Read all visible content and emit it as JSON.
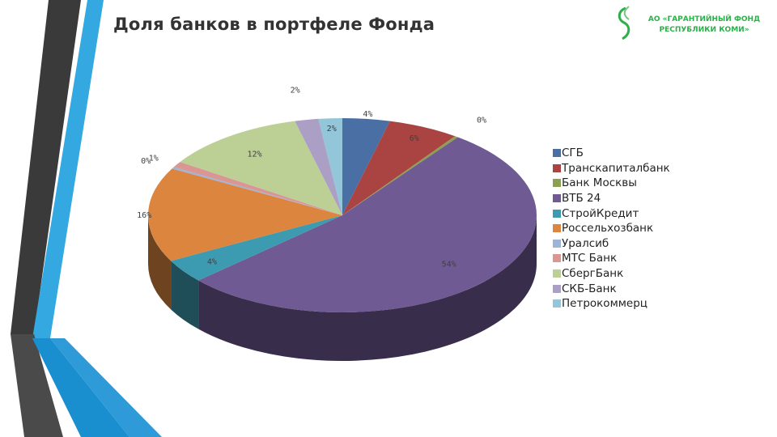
{
  "slide": {
    "title": "Доля банков в портфеле Фонда",
    "logo": {
      "line1": "АО «ГАРАНТИЙНЫЙ ФОНД",
      "line2": "РЕСПУБЛИКИ КОМИ»",
      "icon": "stylized-s-leaf-icon",
      "color": "#2bb04a"
    }
  },
  "chart_data": {
    "type": "pie",
    "title": "",
    "style": "3d",
    "legend_position": "right",
    "categories": [
      "СГБ",
      "Транскапиталбанк",
      "Банк Москвы",
      "ВТБ 24",
      "СтройКредит",
      "Россельхозбанк",
      "Уралсиб",
      "МТС Банк",
      "СбергБанк",
      "СКБ-Банк",
      "Петрокоммерц"
    ],
    "values": [
      4,
      6,
      0.3,
      54,
      4,
      16,
      0.3,
      1,
      12,
      2,
      2
    ],
    "data_labels": [
      "4%",
      "6%",
      "0%",
      "54%",
      "4%",
      "16%",
      "0%",
      "1%",
      "12%",
      "2%",
      "2%"
    ],
    "colors": [
      "#4a6fa5",
      "#a94442",
      "#8da050",
      "#6f5a94",
      "#3d9bb1",
      "#db853e",
      "#9db4d9",
      "#d99692",
      "#bcd096",
      "#ab9fc6",
      "#93c6d8"
    ]
  }
}
